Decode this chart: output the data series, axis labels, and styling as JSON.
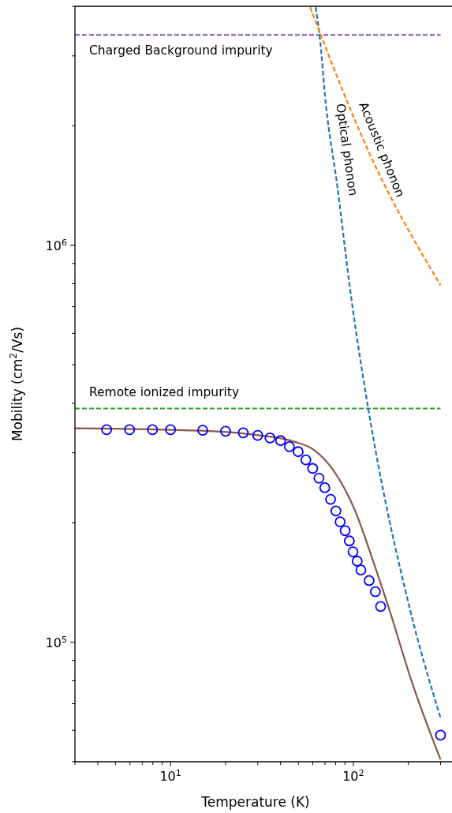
{
  "chart_data": {
    "type": "line",
    "xlabel": "Temperature (K)",
    "ylabel": "Mobility (cm$^{2}$/Vs)",
    "log": "xy",
    "grid": false,
    "legend": false,
    "xlim": [
      3,
      350
    ],
    "ylim": [
      50000,
      4000000
    ],
    "xticks": [
      {
        "value": 3,
        "label": null
      },
      {
        "value": 4,
        "label": null
      },
      {
        "value": 5,
        "label": null
      },
      {
        "value": 6,
        "label": null
      },
      {
        "value": 7,
        "label": null
      },
      {
        "value": 8,
        "label": null
      },
      {
        "value": 9,
        "label": null
      },
      {
        "value": 10,
        "label": "10$^{1}$"
      },
      {
        "value": 20,
        "label": null
      },
      {
        "value": 30,
        "label": null
      },
      {
        "value": 40,
        "label": null
      },
      {
        "value": 50,
        "label": null
      },
      {
        "value": 60,
        "label": null
      },
      {
        "value": 70,
        "label": null
      },
      {
        "value": 80,
        "label": null
      },
      {
        "value": 90,
        "label": null
      },
      {
        "value": 100,
        "label": "10$^{2}$"
      },
      {
        "value": 200,
        "label": null
      },
      {
        "value": 300,
        "label": null
      }
    ],
    "yticks": [
      {
        "value": 50000,
        "label": null
      },
      {
        "value": 60000,
        "label": null
      },
      {
        "value": 70000,
        "label": null
      },
      {
        "value": 80000,
        "label": null
      },
      {
        "value": 90000,
        "label": null
      },
      {
        "value": 100000,
        "label": "10$^{5}$"
      },
      {
        "value": 200000,
        "label": null
      },
      {
        "value": 300000,
        "label": null
      },
      {
        "value": 400000,
        "label": null
      },
      {
        "value": 500000,
        "label": null
      },
      {
        "value": 600000,
        "label": null
      },
      {
        "value": 700000,
        "label": null
      },
      {
        "value": 800000,
        "label": null
      },
      {
        "value": 900000,
        "label": null
      },
      {
        "value": 1000000,
        "label": "10$^{6}$"
      },
      {
        "value": 2000000,
        "label": null
      },
      {
        "value": 3000000,
        "label": null
      },
      {
        "value": 4000000,
        "label": null
      }
    ],
    "series": [
      {
        "name": "Charged Background impurity",
        "color": "#9467bd",
        "line_style": "dashed",
        "x": [
          3,
          300
        ],
        "values": [
          3390000,
          3390000
        ]
      },
      {
        "name": "Remote ionized impurity",
        "color": "#2ca02c",
        "line_style": "dashed",
        "x": [
          3,
          300
        ],
        "values": [
          388000,
          388000
        ]
      },
      {
        "name": "Optical phonon",
        "color": "#1f77b4",
        "line_style": "dashed",
        "x": [
          62.2,
          65.3,
          70.8,
          81.4,
          97.3,
          121,
          206,
          300
        ],
        "values": [
          3980000,
          3390000,
          2260000,
          1430000,
          740000,
          385000,
          119000,
          64500
        ]
      },
      {
        "name": "Acoustic phonon",
        "color": "#ff7f0e",
        "line_style": "dashed",
        "x": [
          58,
          125,
          300
        ],
        "values": [
          3980000,
          1670000,
          793000
        ]
      },
      {
        "color": "#8c564b",
        "line_style": "solid",
        "x": [
          3,
          14.9,
          28.9,
          47.5,
          60.4,
          78.2,
          102,
          129,
          160,
          206,
          300
        ],
        "values": [
          346000,
          341000,
          333000,
          320000,
          306000,
          270000,
          215000,
          159000,
          118000,
          81000,
          50600
        ]
      },
      {
        "type": "scatter",
        "color": "#0000ff",
        "marker": "circle",
        "x": [
          4.47,
          5.97,
          7.97,
          10,
          15,
          20,
          25,
          30,
          35,
          40,
          44.7,
          49.9,
          55,
          59.9,
          64.9,
          69.8,
          75.1,
          80.3,
          84.7,
          90.2,
          95.1,
          99.6,
          105,
          110,
          122,
          132,
          141,
          300
        ],
        "values": [
          343000,
          343000,
          343000,
          343000,
          342000,
          340000,
          337000,
          332000,
          327000,
          322000,
          311000,
          302000,
          288000,
          274000,
          259000,
          245000,
          229000,
          214000,
          201000,
          191000,
          180000,
          169000,
          160000,
          152000,
          143000,
          134000,
          123000,
          58300
        ]
      }
    ]
  }
}
